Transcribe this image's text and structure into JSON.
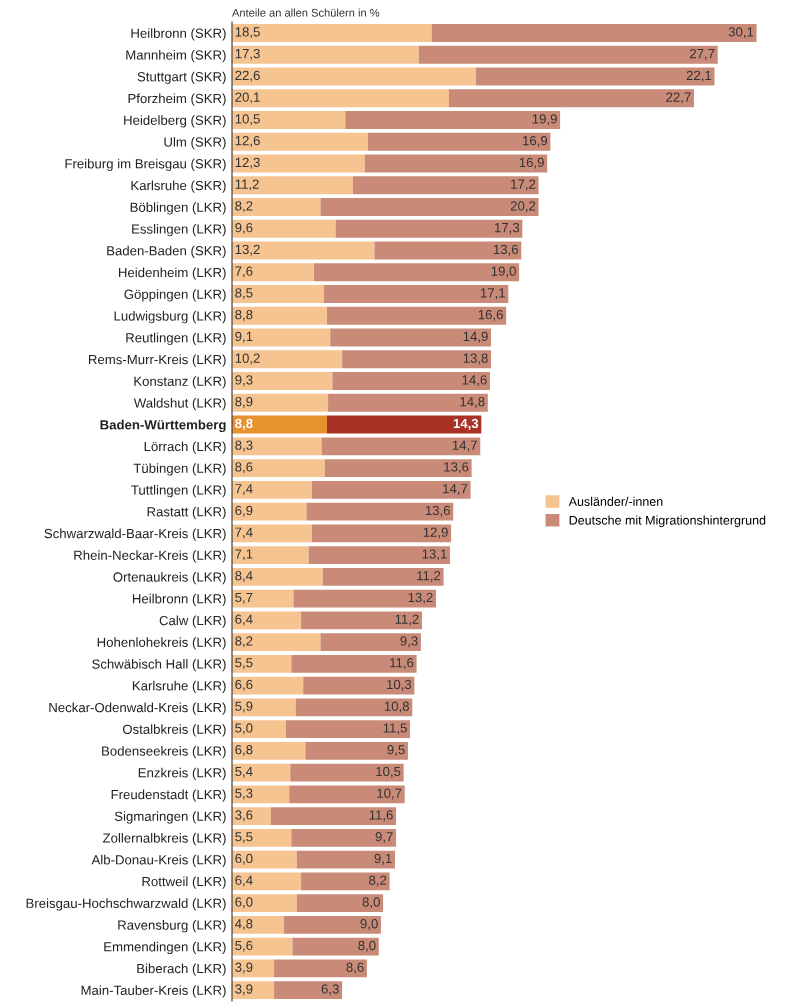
{
  "chart_data": {
    "type": "bar",
    "orientation": "horizontal",
    "stacked": true,
    "title": "Anteile an allen Schülern in %",
    "legend": "right",
    "categories": [
      "Heilbronn (SKR)",
      "Mannheim (SKR)",
      "Stuttgart (SKR)",
      "Pforzheim (SKR)",
      "Heidelberg (SKR)",
      "Ulm (SKR)",
      "Freiburg im Breisgau (SKR)",
      "Karlsruhe (SKR)",
      "Böblingen (LKR)",
      "Esslingen (LKR)",
      "Baden-Baden (SKR)",
      "Heidenheim (LKR)",
      "Göppingen (LKR)",
      "Ludwigsburg (LKR)",
      "Reutlingen (LKR)",
      "Rems-Murr-Kreis (LKR)",
      "Konstanz (LKR)",
      "Waldshut (LKR)",
      "Baden-Württemberg",
      "Lörrach (LKR)",
      "Tübingen (LKR)",
      "Tuttlingen (LKR)",
      "Rastatt (LKR)",
      "Schwarzwald-Baar-Kreis (LKR)",
      "Rhein-Neckar-Kreis (LKR)",
      "Ortenaukreis (LKR)",
      "Heilbronn (LKR)",
      "Calw (LKR)",
      "Hohenlohekreis (LKR)",
      "Schwäbisch Hall (LKR)",
      "Karlsruhe (LKR)",
      "Neckar-Odenwald-Kreis (LKR)",
      "Ostalbkreis (LKR)",
      "Bodenseekreis (LKR)",
      "Enzkreis (LKR)",
      "Freudenstadt (LKR)",
      "Sigmaringen (LKR)",
      "Zollernalbkreis (LKR)",
      "Alb-Donau-Kreis (LKR)",
      "Rottweil (LKR)",
      "Breisgau-Hochschwarzwald (LKR)",
      "Ravensburg (LKR)",
      "Emmendingen (LKR)",
      "Biberach (LKR)",
      "Main-Tauber-Kreis (LKR)"
    ],
    "series": [
      {
        "name": "Ausländer/-innen",
        "color": "#f6c490",
        "colors": [
          "#f6c490",
          "#f6c490",
          "#f6c490",
          "#f6c490",
          "#f6c490",
          "#f6c490",
          "#f6c490",
          "#f6c490",
          "#f6c490",
          "#f6c490",
          "#f6c490",
          "#f6c490",
          "#f6c490",
          "#f6c490",
          "#f6c490",
          "#f6c490",
          "#f6c490",
          "#f6c490",
          "#e8922e",
          "#f6c490",
          "#f6c490",
          "#f6c490",
          "#f6c490",
          "#f6c490",
          "#f6c490",
          "#f6c490",
          "#f6c490",
          "#f6c490",
          "#f6c490",
          "#f6c490",
          "#f6c490",
          "#f6c490",
          "#f6c490",
          "#f6c490",
          "#f6c490",
          "#f6c490",
          "#f6c490",
          "#f6c490",
          "#f6c490",
          "#f6c490",
          "#f6c490",
          "#f6c490",
          "#f6c490",
          "#f6c490",
          "#f6c490"
        ],
        "values": [
          18.5,
          17.3,
          22.6,
          20.1,
          10.5,
          12.6,
          12.3,
          11.2,
          8.2,
          9.6,
          13.2,
          7.6,
          8.5,
          8.8,
          9.1,
          10.2,
          9.3,
          8.9,
          8.8,
          8.3,
          8.6,
          7.4,
          6.9,
          7.4,
          7.1,
          8.4,
          5.7,
          6.4,
          8.2,
          5.5,
          6.6,
          5.9,
          5.0,
          6.8,
          5.4,
          5.3,
          3.6,
          5.5,
          6.0,
          6.4,
          6.0,
          4.8,
          5.6,
          3.9,
          3.9
        ],
        "value_labels": [
          "18,5",
          "17,3",
          "22,6",
          "20,1",
          "10,5",
          "12,6",
          "12,3",
          "11,2",
          "8,2",
          "9,6",
          "13,2",
          "7,6",
          "8,5",
          "8,8",
          "9,1",
          "10,2",
          "9,3",
          "8,9",
          "8,8",
          "8,3",
          "8,6",
          "7,4",
          "6,9",
          "7,4",
          "7,1",
          "8,4",
          "5,7",
          "6,4",
          "8,2",
          "5,5",
          "6,6",
          "5,9",
          "5,0",
          "6,8",
          "5,4",
          "5,3",
          "3,6",
          "5,5",
          "6,0",
          "6,4",
          "6,0",
          "4,8",
          "5,6",
          "3,9",
          "3,9"
        ]
      },
      {
        "name": "Deutsche mit Migrationshintergrund",
        "color": "#c98a78",
        "colors": [
          "#c98a78",
          "#c98a78",
          "#c98a78",
          "#c98a78",
          "#c98a78",
          "#c98a78",
          "#c98a78",
          "#c98a78",
          "#c98a78",
          "#c98a78",
          "#c98a78",
          "#c98a78",
          "#c98a78",
          "#c98a78",
          "#c98a78",
          "#c98a78",
          "#c98a78",
          "#c98a78",
          "#a93224",
          "#c98a78",
          "#c98a78",
          "#c98a78",
          "#c98a78",
          "#c98a78",
          "#c98a78",
          "#c98a78",
          "#c98a78",
          "#c98a78",
          "#c98a78",
          "#c98a78",
          "#c98a78",
          "#c98a78",
          "#c98a78",
          "#c98a78",
          "#c98a78",
          "#c98a78",
          "#c98a78",
          "#c98a78",
          "#c98a78",
          "#c98a78",
          "#c98a78",
          "#c98a78",
          "#c98a78",
          "#c98a78",
          "#c98a78"
        ],
        "values": [
          30.1,
          27.7,
          22.1,
          22.7,
          19.9,
          16.9,
          16.9,
          17.2,
          20.2,
          17.3,
          13.6,
          19.0,
          17.1,
          16.6,
          14.9,
          13.8,
          14.6,
          14.8,
          14.3,
          14.7,
          13.6,
          14.7,
          13.6,
          12.9,
          13.1,
          11.2,
          13.2,
          11.2,
          9.3,
          11.6,
          10.3,
          10.8,
          11.5,
          9.5,
          10.5,
          10.7,
          11.6,
          9.7,
          9.1,
          8.2,
          8.0,
          9.0,
          8.0,
          8.6,
          6.3
        ],
        "value_labels": [
          "30,1",
          "27,7",
          "22,1",
          "22,7",
          "19,9",
          "16,9",
          "16,9",
          "17,2",
          "20,2",
          "17,3",
          "13,6",
          "19,0",
          "17,1",
          "16,6",
          "14,9",
          "13,8",
          "14,6",
          "14,8",
          "14,3",
          "14,7",
          "13,6",
          "14,7",
          "13,6",
          "12,9",
          "13,1",
          "11,2",
          "13,2",
          "11,2",
          "9,3",
          "11,6",
          "10,3",
          "10,8",
          "11,5",
          "9,5",
          "10,5",
          "10,7",
          "11,6",
          "9,7",
          "9,1",
          "8,2",
          "8,0",
          "9,0",
          "8,0",
          "8,6",
          "6,3"
        ]
      }
    ]
  }
}
